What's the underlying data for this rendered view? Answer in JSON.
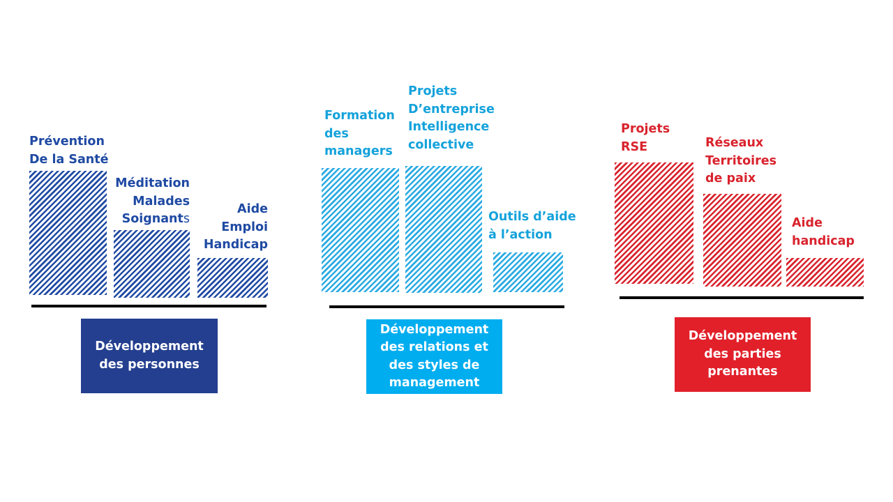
{
  "groups": [
    {
      "category": "Développement\ndes personnes",
      "color": "#243f8f",
      "items": [
        {
          "label": "Prévention\nDe la Santé"
        },
        {
          "label_main": "Méditation\nMalades\nSoignant",
          "label_tail": "s"
        },
        {
          "label": "Aide\nEmploi\nHandicap"
        }
      ]
    },
    {
      "category": "Développement\ndes relations et\ndes styles de\nmanagement",
      "color": "#00adef",
      "items": [
        {
          "label": "Formation\ndes\nmanagers"
        },
        {
          "label": "Projets\nD’entreprise\nIntelligence\ncollective"
        },
        {
          "label": "Outils d’aide\nà l’action"
        }
      ]
    },
    {
      "category": "Développement\ndes parties\nprenantes",
      "color": "#e1202a",
      "items": [
        {
          "label": "Projets\nRSE"
        },
        {
          "label": "Réseaux\nTerritoires\nde paix"
        },
        {
          "label": "Aide\nhandicap"
        }
      ]
    }
  ]
}
